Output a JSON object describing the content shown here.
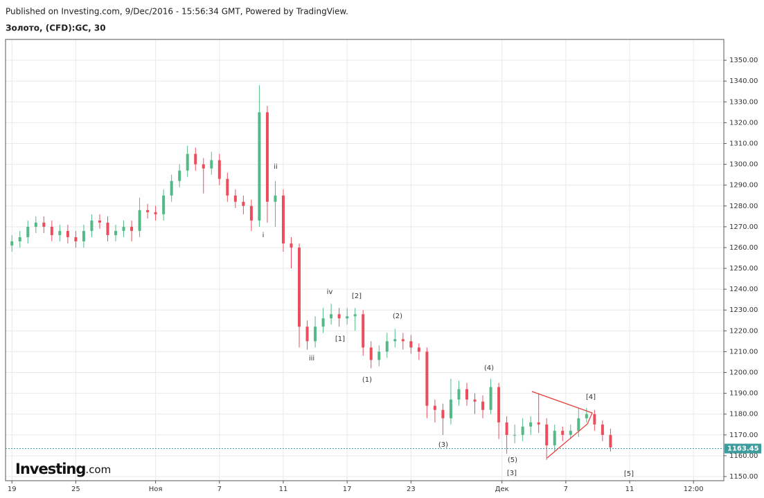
{
  "header": {
    "published": "Published on Investing.com, 9/Dec/2016 - 15:56:34 GMT, Powered by TradingView.",
    "symbol": "Золото, (CFD):GC, 30"
  },
  "logo": {
    "brand": "Investing",
    "suffix": ".com"
  },
  "chart_data": {
    "type": "candlestick",
    "x": [
      0,
      0.5,
      1,
      1.5,
      2,
      2.5,
      3,
      3.5,
      4,
      4.5,
      5,
      5.5,
      6,
      6.5,
      7,
      7.5,
      8,
      8.5,
      9,
      9.5,
      10,
      10.5,
      11,
      11.5,
      12,
      12.5,
      13,
      13.5,
      14,
      14.5,
      15,
      15.5,
      16,
      16.5,
      17,
      17.5,
      18,
      18.5,
      19,
      19.5,
      20,
      20.5,
      21,
      21.5,
      22,
      22.5,
      23,
      23.5,
      24,
      24.5,
      25,
      25.5,
      26,
      26.5,
      27,
      27.5,
      28,
      28.5,
      29,
      29.5,
      30,
      30.5,
      31,
      31.5,
      32,
      32.5,
      33,
      33.5,
      34,
      34.5,
      35,
      35.5,
      36,
      36.5,
      37,
      37.5
    ],
    "open": [
      1261,
      1263,
      1265,
      1270,
      1272,
      1270,
      1266,
      1268,
      1265,
      1263,
      1268,
      1273,
      1272,
      1266,
      1268,
      1270,
      1268,
      1278,
      1277,
      1276,
      1285,
      1292,
      1297,
      1305,
      1300,
      1298,
      1302,
      1293,
      1285,
      1282,
      1280,
      1273,
      1325,
      1282,
      1285,
      1262,
      1260,
      1222,
      1215,
      1222,
      1226,
      1228,
      1226,
      1227,
      1228,
      1212,
      1206,
      1210,
      1215,
      1216,
      1215,
      1212,
      1210,
      1184,
      1182,
      1178,
      1187,
      1192,
      1187,
      1186,
      1182,
      1193,
      1176,
      1170,
      1170,
      1174,
      1176,
      1175,
      1165,
      1172,
      1170,
      1172,
      1178,
      1180,
      1175,
      1170
    ],
    "high": [
      1266,
      1268,
      1273,
      1275,
      1275,
      1273,
      1271,
      1271,
      1268,
      1271,
      1276,
      1276,
      1275,
      1271,
      1273,
      1273,
      1284,
      1281,
      1280,
      1288,
      1295,
      1300,
      1309,
      1308,
      1303,
      1306,
      1305,
      1296,
      1288,
      1285,
      1283,
      1338,
      1328,
      1292,
      1288,
      1265,
      1262,
      1225,
      1227,
      1231,
      1233,
      1231,
      1231,
      1231,
      1230,
      1215,
      1213,
      1219,
      1221,
      1219,
      1218,
      1214,
      1212,
      1187,
      1185,
      1197,
      1196,
      1195,
      1190,
      1189,
      1197,
      1195,
      1179,
      1175,
      1178,
      1179,
      1190,
      1178,
      1175,
      1174,
      1175,
      1183,
      1183,
      1182,
      1177,
      1173
    ],
    "low": [
      1258,
      1260,
      1262,
      1267,
      1267,
      1263,
      1263,
      1262,
      1260,
      1260,
      1265,
      1269,
      1263,
      1263,
      1265,
      1263,
      1265,
      1274,
      1273,
      1273,
      1282,
      1289,
      1294,
      1297,
      1286,
      1295,
      1290,
      1282,
      1279,
      1276,
      1268,
      1270,
      1272,
      1270,
      1258,
      1250,
      1212,
      1211,
      1212,
      1219,
      1223,
      1222,
      1223,
      1220,
      1208,
      1202,
      1203,
      1207,
      1212,
      1211,
      1209,
      1206,
      1178,
      1176,
      1170,
      1175,
      1184,
      1184,
      1180,
      1178,
      1180,
      1168,
      1161,
      1166,
      1167,
      1170,
      1171,
      1158,
      1162,
      1167,
      1168,
      1169,
      1176,
      1172,
      1167,
      1162
    ],
    "close": [
      1263,
      1265,
      1270,
      1272,
      1270,
      1266,
      1268,
      1265,
      1263,
      1268,
      1273,
      1272,
      1266,
      1268,
      1270,
      1268,
      1278,
      1277,
      1276,
      1285,
      1292,
      1297,
      1305,
      1300,
      1298,
      1302,
      1293,
      1285,
      1282,
      1280,
      1273,
      1325,
      1282,
      1285,
      1262,
      1260,
      1222,
      1215,
      1222,
      1226,
      1228,
      1226,
      1227,
      1228,
      1212,
      1206,
      1210,
      1215,
      1216,
      1215,
      1212,
      1210,
      1184,
      1182,
      1178,
      1187,
      1192,
      1187,
      1186,
      1182,
      1193,
      1176,
      1170,
      1170,
      1174,
      1176,
      1175,
      1165,
      1172,
      1170,
      1172,
      1178,
      1180,
      1175,
      1170,
      1164
    ],
    "up_color": "#53b987",
    "down_color": "#eb4d5c",
    "xlim": [
      -0.4,
      44.6
    ],
    "xticks": [
      {
        "value": 0,
        "label": "19"
      },
      {
        "value": 4,
        "label": "25"
      },
      {
        "value": 9,
        "label": "Ноя"
      },
      {
        "value": 13,
        "label": "7"
      },
      {
        "value": 17,
        "label": "11"
      },
      {
        "value": 21,
        "label": "17"
      },
      {
        "value": 25,
        "label": "23"
      },
      {
        "value": 30.7,
        "label": "Дек"
      },
      {
        "value": 34.7,
        "label": "7"
      },
      {
        "value": 38.7,
        "label": "11"
      },
      {
        "value": 42.7,
        "label": "12:00"
      }
    ],
    "ylim": [
      1148,
      1360
    ],
    "yticks": [
      {
        "value": 1150,
        "label": "1150.00"
      },
      {
        "value": 1160,
        "label": "1160.00"
      },
      {
        "value": 1170,
        "label": "1170.00"
      },
      {
        "value": 1180,
        "label": "1180.00"
      },
      {
        "value": 1190,
        "label": "1190.00"
      },
      {
        "value": 1200,
        "label": "1200.00"
      },
      {
        "value": 1210,
        "label": "1210.00"
      },
      {
        "value": 1220,
        "label": "1220.00"
      },
      {
        "value": 1230,
        "label": "1230.00"
      },
      {
        "value": 1240,
        "label": "1240.00"
      },
      {
        "value": 1250,
        "label": "1250.00"
      },
      {
        "value": 1260,
        "label": "1260.00"
      },
      {
        "value": 1270,
        "label": "1270.00"
      },
      {
        "value": 1280,
        "label": "1280.00"
      },
      {
        "value": 1290,
        "label": "1290.00"
      },
      {
        "value": 1300,
        "label": "1300.00"
      },
      {
        "value": 1310,
        "label": "1310.00"
      },
      {
        "value": 1320,
        "label": "1320.00"
      },
      {
        "value": 1330,
        "label": "1330.00"
      },
      {
        "value": 1340,
        "label": "1340.00"
      },
      {
        "value": 1350,
        "label": "1350.00"
      }
    ],
    "grid": true,
    "last_price": {
      "value": 1163.45,
      "label": "1163.45",
      "color": "#3e9c9c"
    },
    "annotations": [
      "ii",
      "i",
      "iv",
      "iii",
      "[2]",
      "[1]",
      "(2)",
      "(1)",
      "(4)",
      "(3)",
      "[4]",
      "(5)",
      "[3]",
      "[5]"
    ]
  }
}
